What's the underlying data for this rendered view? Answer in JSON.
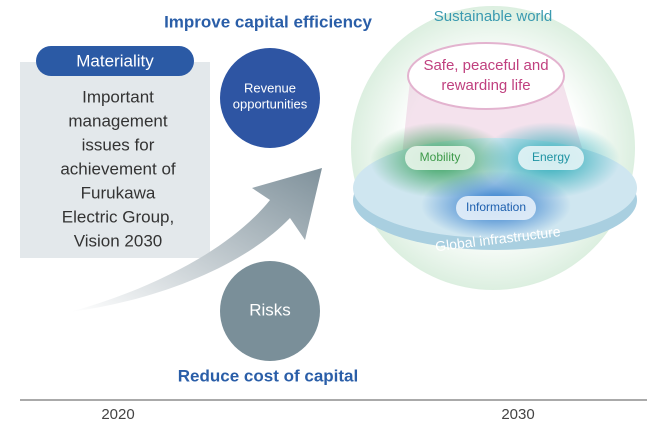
{
  "header": {
    "top_label": "Improve capital efficiency",
    "bottom_label": "Reduce cost of capital",
    "goal_label": "Sustainable world"
  },
  "materiality": {
    "title": "Materiality",
    "lines": [
      "Important",
      "management",
      "issues for",
      "achievement of",
      "Furukawa",
      "Electric Group,",
      "Vision 2030"
    ]
  },
  "circles": {
    "revenue": [
      "Revenue",
      "opportunities"
    ],
    "risks": "Risks"
  },
  "vision": {
    "goal": [
      "Safe, peaceful and",
      "rewarding life"
    ],
    "nodes": [
      "Mobility",
      "Energy",
      "Information"
    ],
    "base": "Global infrastructure"
  },
  "timeline": {
    "start": "2020",
    "end": "2030"
  }
}
